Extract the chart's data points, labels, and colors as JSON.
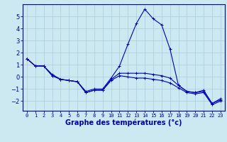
{
  "title": "Graphe des températures (°c)",
  "x_labels": [
    "0",
    "1",
    "2",
    "3",
    "4",
    "5",
    "6",
    "7",
    "8",
    "9",
    "10",
    "11",
    "12",
    "13",
    "14",
    "15",
    "16",
    "17",
    "18",
    "19",
    "20",
    "21",
    "22",
    "23"
  ],
  "hours": [
    0,
    1,
    2,
    3,
    4,
    5,
    6,
    7,
    8,
    9,
    10,
    11,
    12,
    13,
    14,
    15,
    16,
    17,
    18,
    19,
    20,
    21,
    22,
    23
  ],
  "line1": [
    1.5,
    0.9,
    0.9,
    0.2,
    -0.2,
    -0.3,
    -0.4,
    -1.2,
    -1.0,
    -1.0,
    -0.1,
    0.9,
    2.7,
    4.4,
    5.6,
    4.8,
    4.3,
    2.3,
    -0.7,
    -1.2,
    -1.3,
    -1.1,
    -2.2,
    -1.8
  ],
  "line2": [
    1.5,
    0.9,
    0.9,
    0.1,
    -0.2,
    -0.3,
    -0.4,
    -1.3,
    -1.1,
    -1.1,
    -0.2,
    0.3,
    0.3,
    0.3,
    0.3,
    0.2,
    0.1,
    -0.1,
    -0.7,
    -1.2,
    -1.3,
    -1.2,
    -2.2,
    -1.9
  ],
  "line3": [
    1.5,
    0.9,
    0.9,
    0.1,
    -0.2,
    -0.3,
    -0.4,
    -1.3,
    -1.1,
    -1.1,
    -0.3,
    0.1,
    0.0,
    -0.1,
    -0.1,
    -0.2,
    -0.3,
    -0.5,
    -0.9,
    -1.3,
    -1.4,
    -1.3,
    -2.3,
    -2.0
  ],
  "line_color": "#0000cc",
  "marker": "+",
  "marker_size": 3,
  "ylim": [
    -2.8,
    6.0
  ],
  "yticks": [
    -2,
    -1,
    0,
    1,
    2,
    3,
    4,
    5
  ],
  "background_color": "#cce8f0",
  "grid_color": "#aaccdd",
  "text_color": "#0000aa",
  "border_color": "#0000aa"
}
